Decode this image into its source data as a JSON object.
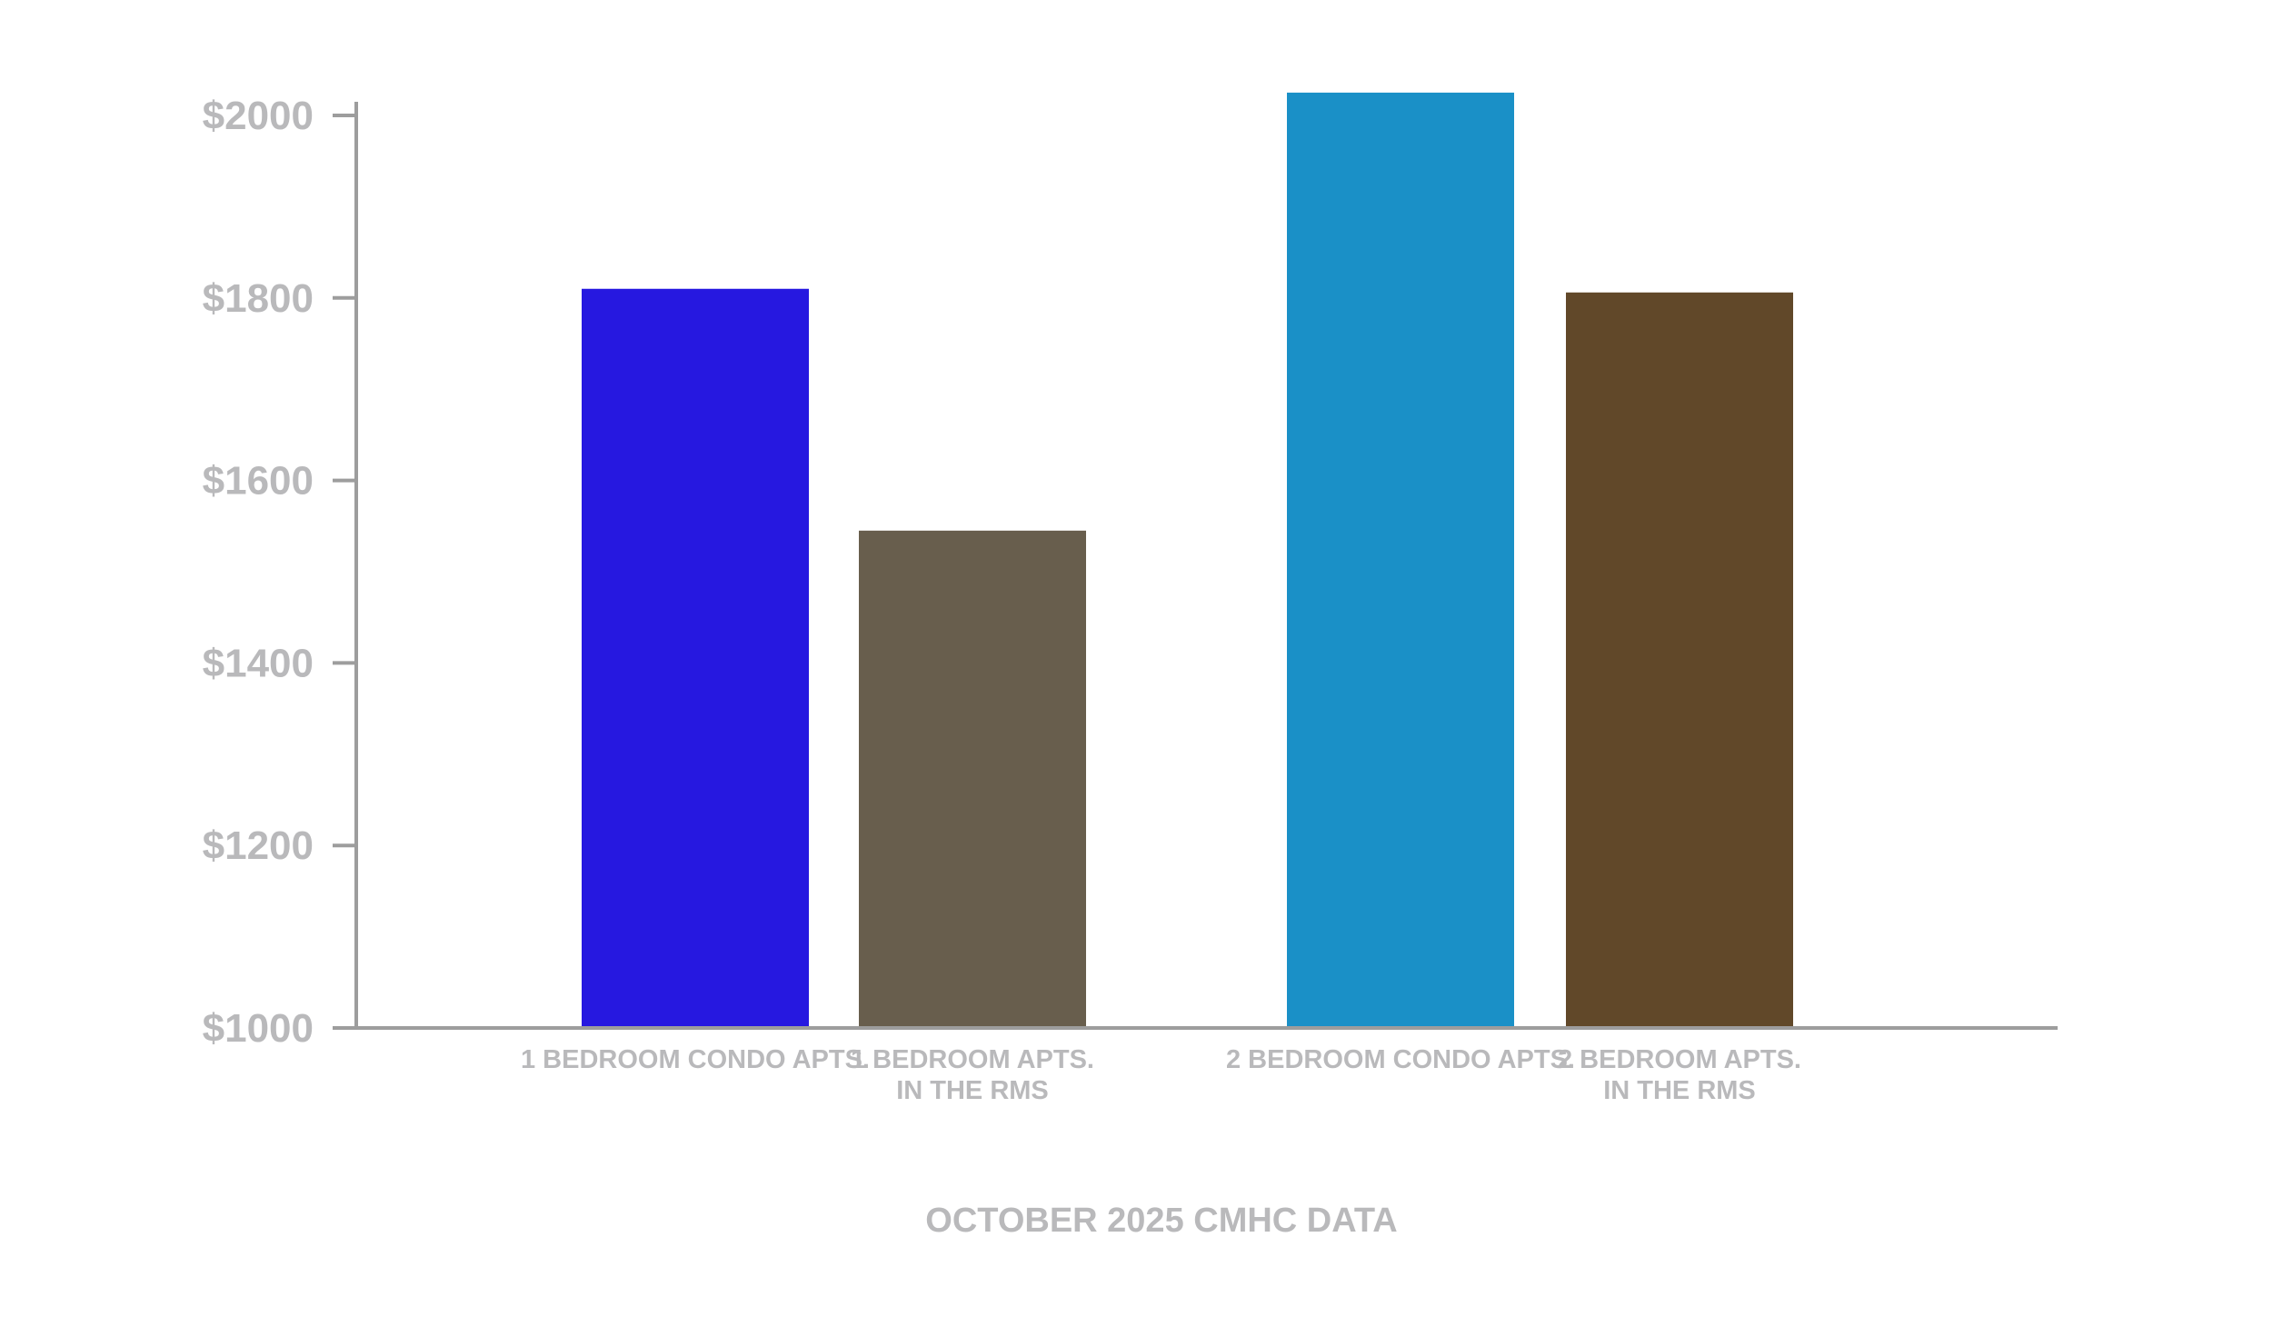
{
  "chart_data": {
    "type": "bar",
    "categories": [
      [
        "1 BEDROOM CONDO APTS."
      ],
      [
        "1 BEDROOM APTS.",
        "IN THE RMS"
      ],
      [
        "2 BEDROOM CONDO APTS."
      ],
      [
        "2 BEDROOM APTS.",
        "IN THE RMS"
      ]
    ],
    "values": [
      1810,
      1545,
      2025,
      1806
    ],
    "colors": [
      "#2618e0",
      "#685e4d",
      "#1a90c7",
      "#614829"
    ],
    "yticks": [
      "$1000",
      "$1200",
      "$1400",
      "$1600",
      "$1800",
      "$2000"
    ],
    "ytick_values": [
      1000,
      1200,
      1400,
      1600,
      1800,
      2000
    ],
    "ylim": [
      1000,
      2000
    ],
    "caption": "OCTOBER 2025 CMHC DATA",
    "title": "",
    "xlabel": "",
    "ylabel": "",
    "grid": false,
    "axis_color": "#9d9d9d"
  }
}
